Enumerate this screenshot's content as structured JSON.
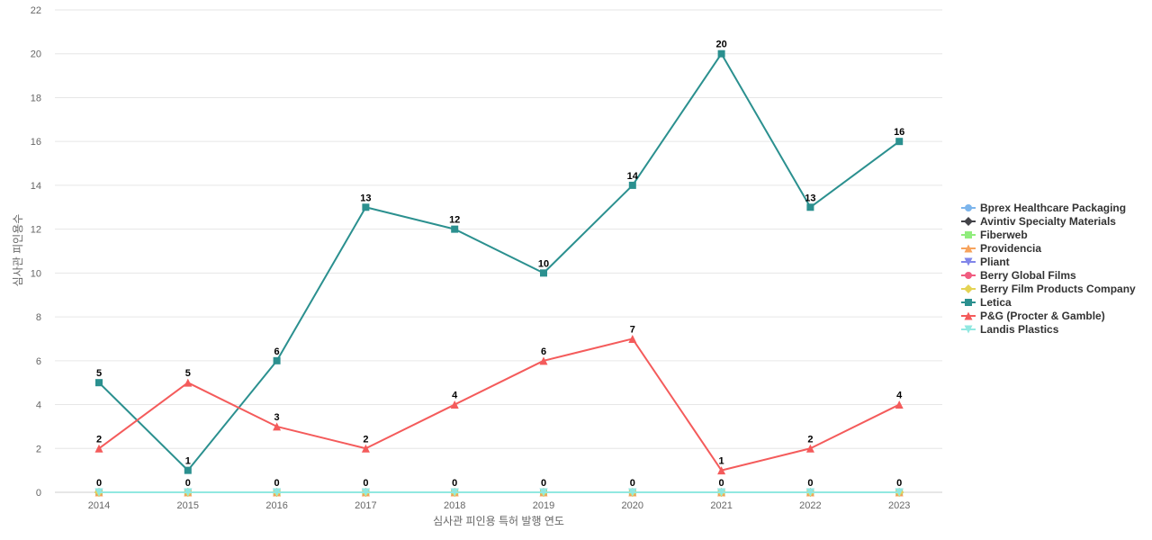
{
  "chart_data": {
    "type": "line",
    "title": "",
    "xlabel": "심사관 피인용 특허 발행 연도",
    "ylabel": "심사관 피인용수",
    "x": [
      "2014",
      "2015",
      "2016",
      "2017",
      "2018",
      "2019",
      "2020",
      "2021",
      "2022",
      "2023"
    ],
    "ylim": [
      0,
      22
    ],
    "yticks": [
      0,
      2,
      4,
      6,
      8,
      10,
      12,
      14,
      16,
      18,
      20,
      22
    ],
    "grid": true,
    "legend_position": "right",
    "series": [
      {
        "name": "Bprex Healthcare Packaging",
        "color": "#7cb5ec",
        "marker": "circle",
        "values": [
          0,
          0,
          0,
          0,
          0,
          0,
          0,
          0,
          0,
          0
        ],
        "show_labels": false
      },
      {
        "name": "Avintiv Specialty Materials",
        "color": "#434348",
        "marker": "diamond",
        "values": [
          0,
          0,
          0,
          0,
          0,
          0,
          0,
          0,
          0,
          0
        ],
        "show_labels": false
      },
      {
        "name": "Fiberweb",
        "color": "#90ed7d",
        "marker": "square",
        "values": [
          0,
          0,
          0,
          0,
          0,
          0,
          0,
          0,
          0,
          0
        ],
        "show_labels": false
      },
      {
        "name": "Providencia",
        "color": "#f7a35c",
        "marker": "triangle",
        "values": [
          0,
          0,
          0,
          0,
          0,
          0,
          0,
          0,
          0,
          0
        ],
        "show_labels": false
      },
      {
        "name": "Pliant",
        "color": "#8085e9",
        "marker": "triangle-down",
        "values": [
          0,
          0,
          0,
          0,
          0,
          0,
          0,
          0,
          0,
          0
        ],
        "show_labels": false
      },
      {
        "name": "Berry Global Films",
        "color": "#f15c80",
        "marker": "circle",
        "values": [
          0,
          0,
          0,
          0,
          0,
          0,
          0,
          0,
          0,
          0
        ],
        "show_labels": false
      },
      {
        "name": "Berry Film Products Company",
        "color": "#e4d354",
        "marker": "diamond",
        "values": [
          0,
          0,
          0,
          0,
          0,
          0,
          0,
          0,
          0,
          0
        ],
        "show_labels": false
      },
      {
        "name": "Letica",
        "color": "#2b908f",
        "marker": "square",
        "values": [
          5,
          1,
          6,
          13,
          12,
          10,
          14,
          20,
          13,
          16
        ],
        "show_labels": true
      },
      {
        "name": "P&G (Procter & Gamble)",
        "color": "#f45b5b",
        "marker": "triangle",
        "values": [
          2,
          5,
          3,
          2,
          4,
          6,
          7,
          1,
          2,
          4
        ],
        "show_labels": true
      },
      {
        "name": "Landis Plastics",
        "color": "#91e8e1",
        "marker": "triangle-down",
        "values": [
          0,
          0,
          0,
          0,
          0,
          0,
          0,
          0,
          0,
          0
        ],
        "show_labels": true
      }
    ]
  }
}
